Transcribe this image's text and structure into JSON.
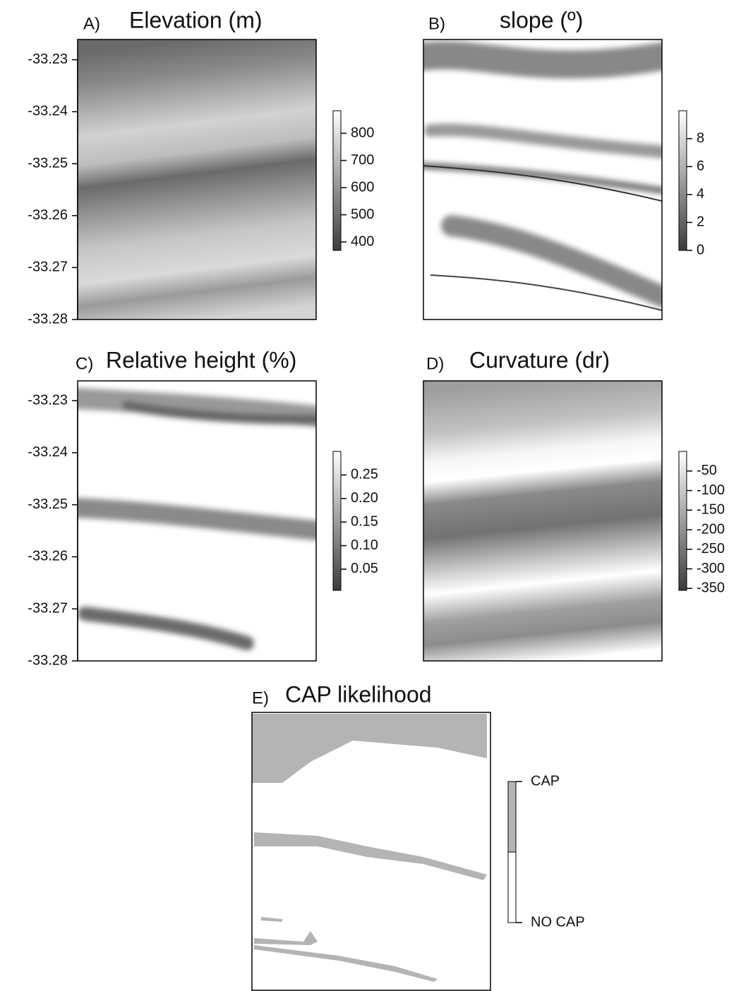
{
  "chart_data": [
    {
      "type": "raster",
      "panel_label": "A)",
      "title": "Elevation (m)",
      "ylim": [
        -33.28,
        -33.2261
      ],
      "yticks": [
        -33.23,
        -33.24,
        -33.25,
        -33.26,
        -33.27,
        -33.28
      ],
      "clim": [
        369,
        883
      ],
      "cticks": [
        400,
        500,
        600,
        700,
        800
      ],
      "colors": [
        "#3c3c3c",
        "#ffffff"
      ]
    },
    {
      "type": "raster",
      "panel_label": "B)",
      "title": "slope (º)",
      "clim": [
        0,
        10
      ],
      "cticks": [
        0,
        2,
        4,
        6,
        8
      ],
      "colors": [
        "#3c3c3c",
        "#ffffff"
      ]
    },
    {
      "type": "raster",
      "panel_label": "C)",
      "title": "Relative height (%)",
      "ylim": [
        -33.28,
        -33.2262
      ],
      "yticks": [
        -33.23,
        -33.24,
        -33.25,
        -33.26,
        -33.27,
        -33.28
      ],
      "clim": [
        0.005,
        0.3
      ],
      "cticks": [
        0.05,
        {
          "value": 0.1,
          "label": "0.10"
        },
        0.15,
        {
          "value": 0.2,
          "label": "0.20"
        },
        0.25
      ],
      "colors": [
        "#3c3c3c",
        "#ffffff"
      ]
    },
    {
      "type": "raster",
      "panel_label": "D)",
      "title": "Curvature (dr)",
      "clim": [
        -355,
        0
      ],
      "cticks": [
        -350,
        -300,
        -250,
        -200,
        -150,
        -100,
        -50
      ],
      "colors": [
        "#3c3c3c",
        "#ffffff"
      ]
    },
    {
      "type": "categorical-raster",
      "panel_label": "E)",
      "title": "CAP likelihood",
      "legend": [
        {
          "label": "CAP",
          "color": "#b4b4b4"
        },
        {
          "label": "NO CAP",
          "color": "#ffffff"
        }
      ]
    }
  ]
}
